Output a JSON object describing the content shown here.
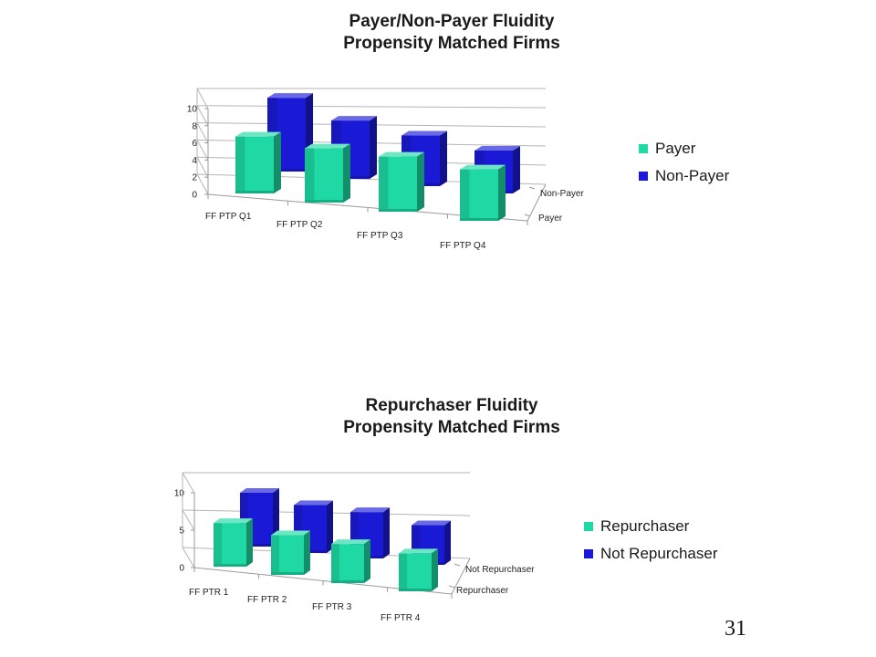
{
  "colors": {
    "series_front": "#1ed9a4",
    "series_back": "#1a1ad6",
    "axis": "#9a9a9a",
    "grid": "#b5b5b5",
    "text": "#1a1a1a"
  },
  "page_number": "31",
  "chart_data": [
    {
      "type": "bar",
      "title_lines": [
        "Payer/Non-Payer Fluidity",
        "Propensity Matched Firms"
      ],
      "categories": [
        "FF PTP Q1",
        "FF PTP Q2",
        "FF PTP Q3",
        "FF PTP Q4"
      ],
      "depth_labels": [
        "Non-Payer",
        "Payer"
      ],
      "y_ticks": [
        "0",
        "2",
        "4",
        "6",
        "8",
        "10"
      ],
      "ylim": [
        0,
        10
      ],
      "series": [
        {
          "name": "Payer",
          "values": [
            6.3,
            6.0,
            6.1,
            5.7
          ]
        },
        {
          "name": "Non-Payer",
          "values": [
            8.6,
            6.8,
            5.9,
            5.0
          ]
        }
      ],
      "legend": {
        "position": "right",
        "entries": [
          "Payer",
          "Non-Payer"
        ]
      },
      "style": "3d-column"
    },
    {
      "type": "bar",
      "title_lines": [
        "Repurchaser Fluidity",
        "Propensity Matched Firms"
      ],
      "categories": [
        "FF PTR 1",
        "FF PTR 2",
        "FF PTR 3",
        "FF PTR 4"
      ],
      "depth_labels": [
        "Not Repurchaser",
        "Repurchaser"
      ],
      "y_ticks": [
        "0",
        "5",
        "10"
      ],
      "ylim": [
        0,
        10
      ],
      "series": [
        {
          "name": "Repurchaser",
          "values": [
            7.6,
            6.9,
            6.8,
            6.6
          ]
        },
        {
          "name": "Not Repurchaser",
          "values": [
            7.2,
            6.4,
            6.2,
            5.3
          ]
        }
      ],
      "legend": {
        "position": "right",
        "entries": [
          "Repurchaser",
          "Not Repurchaser"
        ]
      },
      "style": "3d-column"
    }
  ]
}
